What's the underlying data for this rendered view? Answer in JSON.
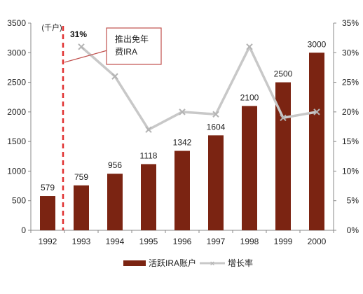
{
  "chart_data": {
    "type": "bar",
    "categories": [
      "1992",
      "1993",
      "1994",
      "1995",
      "1996",
      "1997",
      "1998",
      "1999",
      "2000"
    ],
    "unit_label": "(千户)",
    "left_axis": {
      "min": 0,
      "max": 3500,
      "ticks": [
        0,
        500,
        1000,
        1500,
        2000,
        2500,
        3000,
        3500
      ]
    },
    "right_axis": {
      "min": 0,
      "max": 35,
      "ticks": [
        0,
        5,
        10,
        15,
        20,
        25,
        30,
        35
      ],
      "tick_labels": [
        "0%",
        "5%",
        "10%",
        "15%",
        "20%",
        "25%",
        "30%",
        "35%"
      ]
    },
    "series": [
      {
        "name": "活跃IRA账户",
        "kind": "bar",
        "axis": "left",
        "values": [
          579,
          759,
          956,
          1118,
          1342,
          1604,
          2100,
          2500,
          3000
        ],
        "data_labels": [
          "579",
          "759",
          "956",
          "1118",
          "1342",
          "1604",
          "2100",
          "2500",
          "3000"
        ]
      },
      {
        "name": "增长率",
        "kind": "line",
        "axis": "right",
        "values": [
          null,
          31,
          26,
          17,
          20,
          19.6,
          31,
          19,
          20
        ]
      }
    ],
    "annotations": {
      "callout_text": "推出免年\n费IRA",
      "highlight_label": "31%",
      "marker_category": "1992"
    },
    "colors": {
      "bar": "#7b2412",
      "line": "#c8c8c8",
      "marker": "#b4b4b4",
      "dashed": "#e03030",
      "callout_border": "#c0504d"
    },
    "legend_position": "bottom",
    "grid": false
  }
}
